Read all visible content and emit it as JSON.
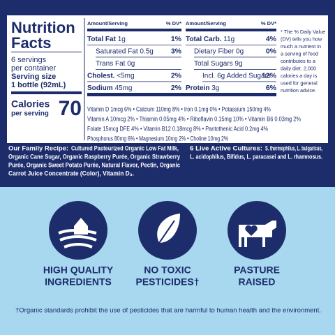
{
  "nutrition": {
    "title_lines": [
      "Nutrition",
      "Facts"
    ],
    "servings_lines": [
      "6 servings",
      "per container"
    ],
    "serving_size_label": "Serving size",
    "serving_size": "1 bottle (92mL)",
    "calories_label": "Calories",
    "calories_sub": "per serving",
    "calories": "70",
    "left_header": [
      "Amount/Serving",
      "% DV*"
    ],
    "right_header": [
      "Amount/Serving",
      "% DV*"
    ],
    "left_rows": [
      {
        "name": "Total Fat",
        "amount": "1g",
        "dv": "1%"
      },
      {
        "name": "Saturated Fat",
        "amount": "0.5g",
        "dv": "3%"
      },
      {
        "name": "Trans Fat",
        "amount": "0g"
      },
      {
        "name": "Cholest.",
        "amount": "<5mg",
        "dv": "2%"
      },
      {
        "name": "Sodium",
        "amount": "45mg",
        "dv": "2%"
      }
    ],
    "right_rows": [
      {
        "name": "Total Carb.",
        "amount": "11g",
        "dv": "4%"
      },
      {
        "name": "Dietary Fiber",
        "amount": "0g",
        "dv": "0%"
      },
      {
        "name": "Total Sugars",
        "amount": "9g"
      },
      {
        "name": "Incl. 6g Added Sugars",
        "amount": "",
        "dv": "12%"
      },
      {
        "name": "Protein",
        "amount": "3g",
        "dv": "6%"
      }
    ],
    "vitamins": [
      "Vitamin D 1mcg 6% • Calcium 110mg 8% • Iron 0.1mg 0% • Potassium 150mg 4%",
      "Vitamin A 10mcg 2% • Thiamin 0.05mg 4% • Riboflavin 0.15mg 10% • Vitamin B6 0.03mg 2%",
      "Folate 15mcg DFE 4% • Vitamin B12 0.18mcg 8% • Pantothenic Acid 0.2mg 4%",
      "Phosphorus 80mg 6% • Magnesium 10mg 2% • Choline 10mg 2%"
    ],
    "footnote_lines": [
      "* The % Daily Value",
      "(DV) tells you how",
      "much a nutrient in",
      "a serving of food",
      "contributes to a",
      "daily diet. 2,000",
      "calories a day is",
      "used for general",
      "nutrition advice."
    ]
  },
  "ingredients": {
    "label": "Our Family Recipe:",
    "lines": [
      "Cultured Pasteurized Organic Low Fat Milk,",
      "Organic Cane Sugar, Organic Raspberry Purée, Organic Strawberry",
      "Purée, Organic Sweet Potato Purée, Natural Flavor, Pectin, Organic",
      "Carrot Juice Concentrate (Color), Vitamin D₃."
    ]
  },
  "cultures": {
    "label": "6 Live Active Cultures:",
    "lines": [
      "S. thermophilus, L. bulgaricus,",
      "L. acidophilus, Bifidus, L. paracasei and L. rhamnosus."
    ]
  },
  "features": [
    {
      "lines": [
        "HIGH QUALITY",
        "INGREDIENTS"
      ]
    },
    {
      "lines": [
        "NO TOXIC",
        "PESTICIDES†"
      ]
    },
    {
      "lines": [
        "PASTURE",
        "RAISED"
      ]
    }
  ],
  "footnote": "†Organic standards prohibit the use of pesticides that are harmful to human health and the environment."
}
